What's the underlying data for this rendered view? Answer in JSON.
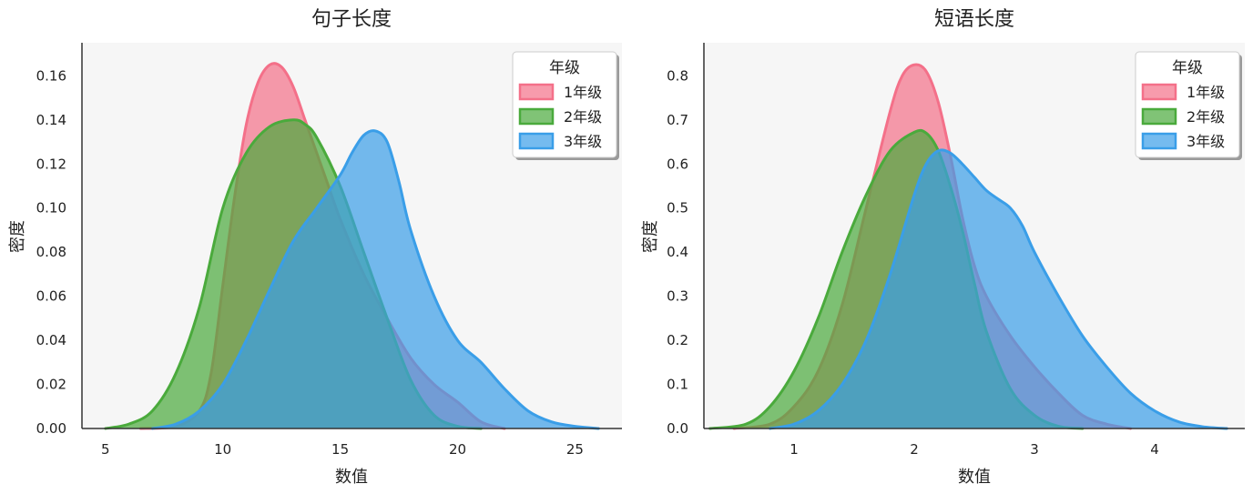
{
  "chart_data": [
    {
      "type": "area",
      "title": "句子长度",
      "xlabel": "数值",
      "ylabel": "密度",
      "xlim": [
        4,
        27
      ],
      "ylim": [
        0,
        0.175
      ],
      "xticks": [
        5,
        10,
        15,
        20,
        25
      ],
      "yticks": [
        0.0,
        0.02,
        0.04,
        0.06,
        0.08,
        0.1,
        0.12,
        0.14,
        0.16
      ],
      "ytick_labels": [
        "0.00",
        "0.02",
        "0.04",
        "0.06",
        "0.08",
        "0.10",
        "0.12",
        "0.14",
        "0.16"
      ],
      "legend": {
        "title": "年级",
        "position": "top-right"
      },
      "series": [
        {
          "name": "1年级",
          "color": "#f47089",
          "x": [
            6.5,
            8,
            9,
            9.5,
            10,
            10.5,
            11,
            11.5,
            12,
            12.5,
            13,
            13.5,
            14,
            14.5,
            15,
            16,
            17,
            18,
            19,
            20,
            21,
            22
          ],
          "y": [
            0,
            0.001,
            0.008,
            0.025,
            0.065,
            0.105,
            0.138,
            0.157,
            0.165,
            0.164,
            0.155,
            0.14,
            0.125,
            0.11,
            0.095,
            0.07,
            0.05,
            0.032,
            0.02,
            0.012,
            0.003,
            0
          ]
        },
        {
          "name": "2年级",
          "color": "#4aaa3c",
          "x": [
            5,
            6,
            7,
            8,
            9,
            10,
            11,
            12,
            13,
            13.5,
            14,
            15,
            16,
            17,
            18,
            19,
            20,
            21
          ],
          "y": [
            0,
            0.002,
            0.008,
            0.025,
            0.055,
            0.1,
            0.125,
            0.137,
            0.14,
            0.138,
            0.132,
            0.11,
            0.08,
            0.05,
            0.022,
            0.006,
            0.001,
            0
          ]
        },
        {
          "name": "3年级",
          "color": "#3a9ee8",
          "x": [
            7,
            8,
            9,
            10,
            11,
            12,
            13,
            14,
            15,
            15.5,
            16,
            16.5,
            17,
            17.5,
            18,
            19,
            20,
            21,
            22,
            23,
            24,
            25,
            26
          ],
          "y": [
            0,
            0.002,
            0.008,
            0.02,
            0.04,
            0.063,
            0.085,
            0.1,
            0.115,
            0.125,
            0.133,
            0.135,
            0.13,
            0.112,
            0.09,
            0.06,
            0.04,
            0.03,
            0.018,
            0.008,
            0.003,
            0.001,
            0
          ]
        }
      ]
    },
    {
      "type": "area",
      "title": "短语长度",
      "xlabel": "数值",
      "ylabel": "密度",
      "xlim": [
        0.25,
        4.75
      ],
      "ylim": [
        0,
        0.875
      ],
      "xticks": [
        1,
        2,
        3,
        4
      ],
      "yticks": [
        0.0,
        0.1,
        0.2,
        0.3,
        0.4,
        0.5,
        0.6,
        0.7,
        0.8
      ],
      "ytick_labels": [
        "0.0",
        "0.1",
        "0.2",
        "0.3",
        "0.4",
        "0.5",
        "0.6",
        "0.7",
        "0.8"
      ],
      "legend": {
        "title": "年级",
        "position": "top-right"
      },
      "series": [
        {
          "name": "1年级",
          "color": "#f47089",
          "x": [
            0.5,
            0.8,
            1.0,
            1.2,
            1.4,
            1.6,
            1.8,
            1.9,
            2.0,
            2.1,
            2.2,
            2.3,
            2.4,
            2.5,
            2.6,
            2.8,
            3.0,
            3.2,
            3.4,
            3.6,
            3.8
          ],
          "y": [
            0,
            0.01,
            0.05,
            0.13,
            0.28,
            0.5,
            0.72,
            0.8,
            0.825,
            0.81,
            0.74,
            0.62,
            0.48,
            0.37,
            0.3,
            0.21,
            0.14,
            0.08,
            0.03,
            0.01,
            0
          ]
        },
        {
          "name": "2年级",
          "color": "#4aaa3c",
          "x": [
            0.3,
            0.6,
            0.8,
            1.0,
            1.2,
            1.4,
            1.6,
            1.8,
            2.0,
            2.1,
            2.2,
            2.3,
            2.4,
            2.5,
            2.6,
            2.8,
            3.0,
            3.2,
            3.4
          ],
          "y": [
            0,
            0.01,
            0.05,
            0.13,
            0.25,
            0.4,
            0.53,
            0.63,
            0.672,
            0.67,
            0.63,
            0.55,
            0.45,
            0.33,
            0.22,
            0.09,
            0.03,
            0.005,
            0
          ]
        },
        {
          "name": "3年级",
          "color": "#3a9ee8",
          "x": [
            0.8,
            1.0,
            1.2,
            1.4,
            1.6,
            1.8,
            2.0,
            2.1,
            2.2,
            2.3,
            2.4,
            2.5,
            2.6,
            2.7,
            2.8,
            2.9,
            3.0,
            3.2,
            3.4,
            3.6,
            3.8,
            4.0,
            4.2,
            4.4,
            4.6
          ],
          "y": [
            0,
            0.01,
            0.04,
            0.1,
            0.2,
            0.35,
            0.53,
            0.6,
            0.63,
            0.625,
            0.6,
            0.57,
            0.54,
            0.52,
            0.5,
            0.46,
            0.4,
            0.3,
            0.21,
            0.14,
            0.08,
            0.04,
            0.015,
            0.004,
            0
          ]
        }
      ]
    }
  ]
}
